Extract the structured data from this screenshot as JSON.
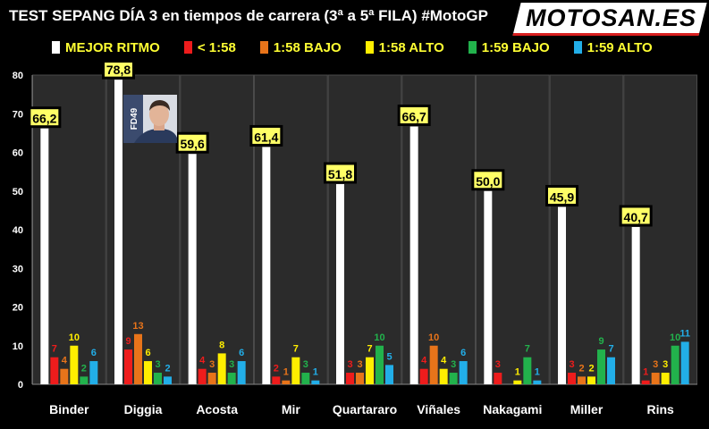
{
  "header": {
    "title": "TEST SEPANG DÍA 3 en tiempos de carrera (3ª a 5ª FILA) #MotoGP",
    "logo": "MOTOSAN.ES"
  },
  "photo": {
    "helmet_number": "FD49"
  },
  "colors": {
    "background": "#000000",
    "panel": "#2b2b2b",
    "label_box": "#ffff66"
  },
  "chart_data": {
    "type": "bar",
    "title": "TEST SEPANG DÍA 3 en tiempos de carrera (3ª a 5ª FILA) #MotoGP",
    "xlabel": "",
    "ylabel": "",
    "ylim": [
      0,
      80
    ],
    "yticks": [
      0,
      10,
      20,
      30,
      40,
      50,
      60,
      70,
      80
    ],
    "grid": false,
    "legend": "top",
    "categories": [
      "Binder",
      "Diggia",
      "Acosta",
      "Mir",
      "Quartararo",
      "Viñales",
      "Nakagami",
      "Miller",
      "Rins"
    ],
    "series": [
      {
        "name": "MEJOR RITMO",
        "color": "#ffffff",
        "values": [
          66.2,
          78.8,
          59.6,
          61.4,
          51.8,
          66.7,
          50.0,
          45.9,
          40.7
        ],
        "labels": [
          "66,2",
          "78,8",
          "59,6",
          "61,4",
          "51,8",
          "66,7",
          "50,0",
          "45,9",
          "40,7"
        ]
      },
      {
        "name": "< 1:58",
        "color": "#ee1c1c",
        "values": [
          7,
          9,
          4,
          2,
          3,
          4,
          3,
          3,
          1
        ],
        "labels": [
          "7",
          "9",
          "4",
          "2",
          "3",
          "4",
          "3",
          "3",
          "1"
        ]
      },
      {
        "name": "1:58 BAJO",
        "color": "#e8741a",
        "values": [
          4,
          13,
          3,
          1,
          3,
          10,
          0,
          2,
          3
        ],
        "labels": [
          "4",
          "13",
          "3",
          "1",
          "3",
          "10",
          "",
          "2",
          "3"
        ]
      },
      {
        "name": "1:58 ALTO",
        "color": "#ffee00",
        "values": [
          10,
          6,
          8,
          7,
          7,
          4,
          1,
          2,
          3
        ],
        "labels": [
          "10",
          "6",
          "8",
          "7",
          "7",
          "4",
          "1",
          "2",
          "3"
        ]
      },
      {
        "name": "1:59 BAJO",
        "color": "#22b24c",
        "values": [
          2,
          3,
          3,
          3,
          10,
          3,
          7,
          9,
          10
        ],
        "labels": [
          "2",
          "3",
          "3",
          "3",
          "10",
          "3",
          "7",
          "9",
          "10"
        ]
      },
      {
        "name": "1:59 ALTO",
        "color": "#22aee8",
        "values": [
          6,
          2,
          6,
          1,
          5,
          6,
          1,
          7,
          11
        ],
        "labels": [
          "6",
          "2",
          "6",
          "1",
          "5",
          "6",
          "1",
          "7",
          "11"
        ]
      }
    ]
  }
}
